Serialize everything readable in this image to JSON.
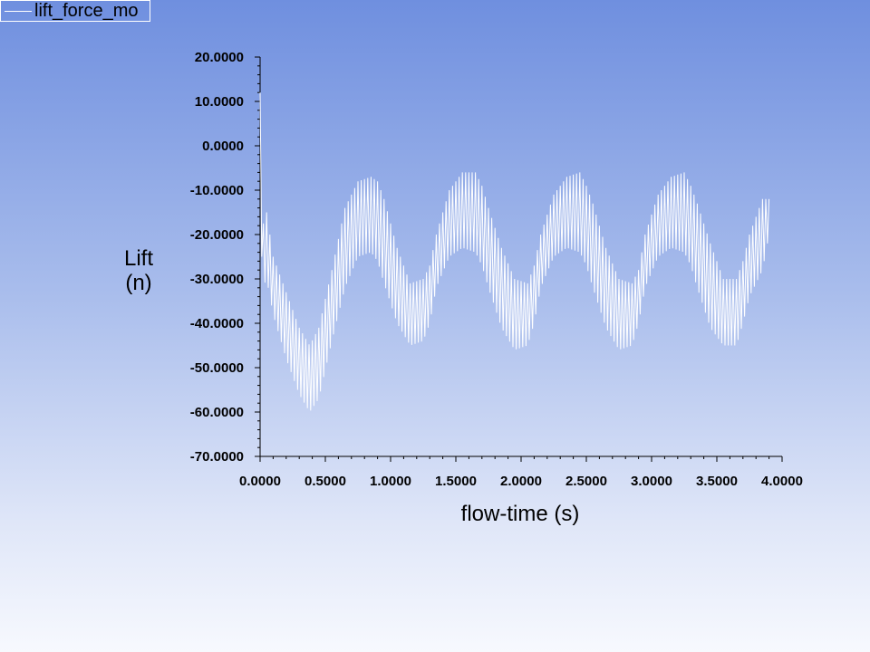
{
  "legend": {
    "series_name": "lift_force_mo"
  },
  "colors": {
    "series": "#ffffff",
    "axis": "#000000"
  },
  "chart_data": {
    "type": "line",
    "xlabel": "flow-time (s)",
    "ylabel_lines": [
      "Lift",
      "(n)"
    ],
    "xlim": [
      0,
      4
    ],
    "ylim": [
      -70,
      20
    ],
    "x_ticks": [
      0,
      0.5,
      1,
      1.5,
      2,
      2.5,
      3,
      3.5,
      4
    ],
    "x_tick_labels": [
      "0.0000",
      "0.5000",
      "1.0000",
      "1.5000",
      "2.0000",
      "2.5000",
      "3.0000",
      "3.5000",
      "4.0000"
    ],
    "y_ticks": [
      20,
      10,
      0,
      -10,
      -20,
      -30,
      -40,
      -50,
      -60,
      -70
    ],
    "y_tick_labels": [
      "20.0000",
      "10.0000",
      "0.0000",
      "-10.0000",
      "-20.0000",
      "-30.0000",
      "-40.0000",
      "-50.0000",
      "-60.0000",
      "-70.0000"
    ],
    "grid": false,
    "legend_position": "top-left",
    "series": [
      {
        "name": "lift_force_mo",
        "envelope_x": [
          0.0,
          0.005,
          0.02,
          0.05,
          0.1,
          0.2,
          0.3,
          0.38,
          0.45,
          0.55,
          0.65,
          0.75,
          0.85,
          0.9,
          0.95,
          1.05,
          1.15,
          1.25,
          1.3,
          1.35,
          1.45,
          1.55,
          1.65,
          1.7,
          1.75,
          1.85,
          1.95,
          2.05,
          2.1,
          2.15,
          2.25,
          2.35,
          2.45,
          2.5,
          2.55,
          2.65,
          2.75,
          2.85,
          2.9,
          2.95,
          3.05,
          3.15,
          3.25,
          3.3,
          3.35,
          3.45,
          3.55,
          3.65,
          3.7,
          3.75,
          3.85,
          3.9
        ],
        "upper": [
          12,
          8,
          -18,
          -15,
          -25,
          -33,
          -41,
          -45,
          -41,
          -28,
          -14,
          -8,
          -7,
          -8,
          -12,
          -23,
          -31,
          -30,
          -27,
          -20,
          -10,
          -6,
          -6,
          -9,
          -14,
          -23,
          -30,
          -31,
          -27,
          -20,
          -11,
          -7,
          -6,
          -9,
          -13,
          -23,
          -30,
          -31,
          -28,
          -20,
          -11,
          -7,
          -6,
          -9,
          -13,
          -22,
          -30,
          -30,
          -26,
          -20,
          -12,
          -12
        ],
        "lower": [
          -8,
          -18,
          -32,
          -30,
          -38,
          -48,
          -56,
          -60,
          -57,
          -44,
          -32,
          -25,
          -24,
          -26,
          -31,
          -40,
          -45,
          -44,
          -40,
          -32,
          -25,
          -23,
          -24,
          -27,
          -32,
          -41,
          -46,
          -45,
          -40,
          -32,
          -25,
          -23,
          -24,
          -27,
          -32,
          -41,
          -46,
          -45,
          -40,
          -32,
          -25,
          -23,
          -24,
          -27,
          -32,
          -41,
          -45,
          -45,
          -40,
          -34,
          -28,
          -20
        ]
      }
    ]
  }
}
